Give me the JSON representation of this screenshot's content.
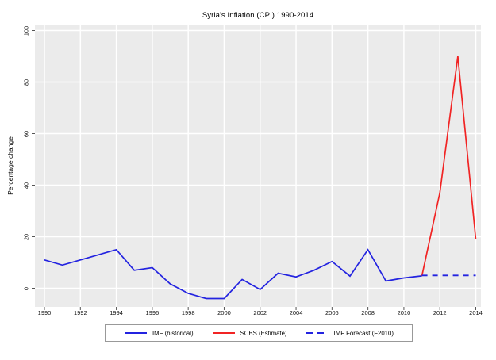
{
  "title": "Syria's Inflation (CPI) 1990-2014",
  "y_axis": {
    "label": "Percentage change"
  },
  "colors": {
    "blue": "#2323e0",
    "red": "#f12424",
    "panel_bg": "#ebebeb",
    "grid": "#ffffff",
    "tick": "#555555",
    "text": "#111111",
    "legend_border": "#999999"
  },
  "legend": [
    {
      "label": "IMF (historical)",
      "color": "#2323e0",
      "style": "solid"
    },
    {
      "label": "SCBS (Estimate)",
      "color": "#f12424",
      "style": "solid"
    },
    {
      "label": "IMF Forecast (F2010)",
      "color": "#2323e0",
      "style": "dashed"
    }
  ],
  "chart_data": {
    "type": "line",
    "title": "Syria's Inflation (CPI) 1990-2014",
    "xlabel": "",
    "ylabel": "Percentage change",
    "xlim": [
      1989.4,
      2014.3
    ],
    "ylim": [
      -7,
      102
    ],
    "x_ticks": [
      1990,
      1992,
      1994,
      1996,
      1998,
      2000,
      2002,
      2004,
      2006,
      2008,
      2010,
      2012,
      2014
    ],
    "y_ticks": [
      0,
      20,
      40,
      60,
      80,
      100
    ],
    "grid": true,
    "legend_position": "bottom",
    "series": [
      {
        "name": "IMF (historical)",
        "color": "#2323e0",
        "style": "solid",
        "x": [
          1990,
          1991,
          1992,
          1993,
          1994,
          1995,
          1996,
          1997,
          1998,
          1999,
          2000,
          2001,
          2002,
          2003,
          2004,
          2005,
          2006,
          2007,
          2008,
          2009,
          2010,
          2011
        ],
        "values": [
          11,
          9,
          11,
          13,
          15,
          7,
          8,
          1.7,
          -2,
          -4,
          -4,
          3.4,
          -0.5,
          5.8,
          4.4,
          7,
          10.4,
          4.7,
          15,
          2.8,
          4,
          4.8
        ]
      },
      {
        "name": "SCBS (Estimate)",
        "color": "#f12424",
        "style": "solid",
        "x": [
          2011,
          2012,
          2013,
          2014
        ],
        "values": [
          4.8,
          37,
          90,
          19
        ]
      },
      {
        "name": "IMF Forecast (F2010)",
        "color": "#2323e0",
        "style": "dashed",
        "x": [
          2011,
          2012,
          2013,
          2014
        ],
        "values": [
          5,
          5,
          5,
          5
        ]
      }
    ]
  }
}
